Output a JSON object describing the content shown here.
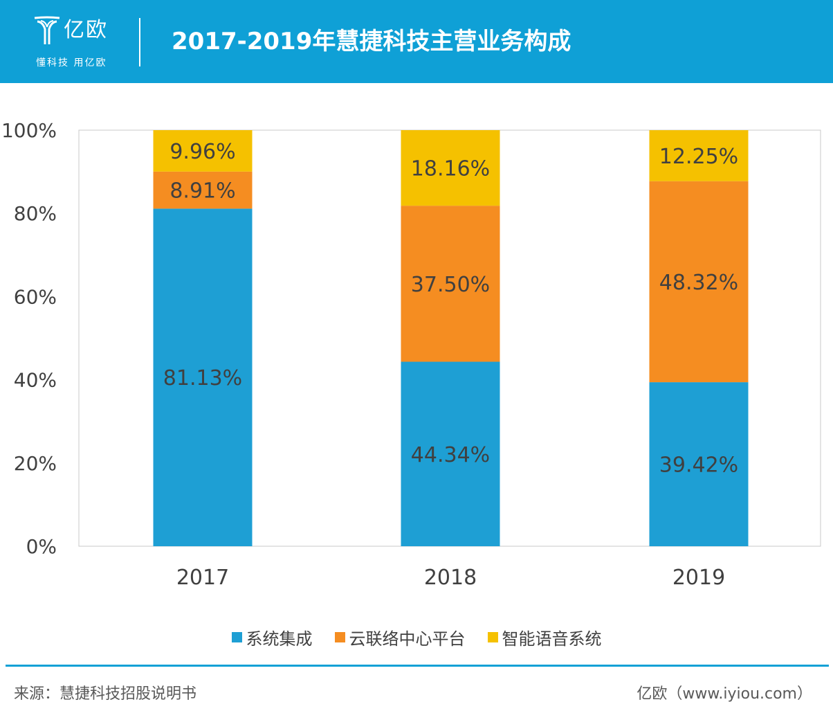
{
  "header": {
    "logo_name": "亿欧",
    "logo_slogan": "懂科技 用亿欧",
    "title": "2017-2019年慧捷科技主营业务构成"
  },
  "chart_data": {
    "type": "bar",
    "stacked": true,
    "categories": [
      "2017",
      "2018",
      "2019"
    ],
    "series": [
      {
        "name": "系统集成",
        "color": "#1e9fd4",
        "values": [
          81.13,
          44.34,
          39.42
        ],
        "labels": [
          "81.13%",
          "44.34%",
          "39.42%"
        ]
      },
      {
        "name": "云联络中心平台",
        "color": "#f58d21",
        "values": [
          8.91,
          37.5,
          48.32
        ],
        "labels": [
          "8.91%",
          "37.50%",
          "48.32%"
        ]
      },
      {
        "name": "智能语音系统",
        "color": "#f5c100",
        "values": [
          9.96,
          18.16,
          12.25
        ],
        "labels": [
          "9.96%",
          "18.16%",
          "12.25%"
        ]
      }
    ],
    "y_ticks": [
      "0%",
      "20%",
      "40%",
      "60%",
      "80%",
      "100%"
    ],
    "ylim": [
      0,
      100
    ],
    "legend_position": "bottom",
    "grid": false
  },
  "footer": {
    "source": "来源：慧捷科技招股说明书",
    "brand": "亿欧（www.iyiou.com）"
  }
}
